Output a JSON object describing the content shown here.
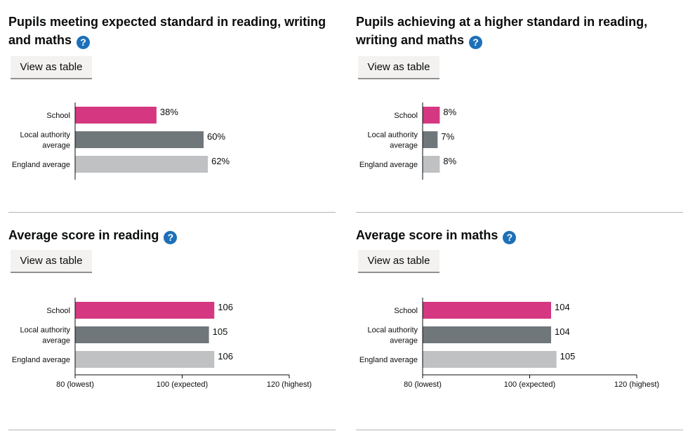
{
  "colors": {
    "school": "#d53880",
    "local": "#6f777b",
    "england": "#bfc1c3"
  },
  "button_label": "View as table",
  "help_icon": "question-mark-icon",
  "chart_data": [
    {
      "type": "bar",
      "title": "Pupils meeting expected standard in reading, writing and maths",
      "categories": [
        "School",
        "Local authority average",
        "England average"
      ],
      "category_lines": [
        [
          "School"
        ],
        [
          "Local authority",
          "average"
        ],
        [
          "England average"
        ]
      ],
      "values": [
        38,
        60,
        62
      ],
      "value_labels": [
        "38%",
        "60%",
        "62%"
      ],
      "xlim": [
        0,
        100
      ]
    },
    {
      "type": "bar",
      "title": "Pupils achieving at a higher standard in reading, writing and maths",
      "categories": [
        "School",
        "Local authority average",
        "England average"
      ],
      "category_lines": [
        [
          "School"
        ],
        [
          "Local authority",
          "average"
        ],
        [
          "England average"
        ]
      ],
      "values": [
        8,
        7,
        8
      ],
      "value_labels": [
        "8%",
        "7%",
        "8%"
      ],
      "xlim": [
        0,
        100
      ]
    },
    {
      "type": "bar",
      "title": "Average score in reading",
      "categories": [
        "School",
        "Local authority average",
        "England average"
      ],
      "category_lines": [
        [
          "School"
        ],
        [
          "Local authority",
          "average"
        ],
        [
          "England average"
        ]
      ],
      "values": [
        106,
        105,
        106
      ],
      "value_labels": [
        "106",
        "105",
        "106"
      ],
      "xlim": [
        80,
        120
      ],
      "xticks": [
        80,
        100,
        120
      ],
      "xtick_labels": [
        "80 (lowest)",
        "100 (expected)",
        "120 (highest)"
      ]
    },
    {
      "type": "bar",
      "title": "Average score in maths",
      "categories": [
        "School",
        "Local authority average",
        "England average"
      ],
      "category_lines": [
        [
          "School"
        ],
        [
          "Local authority",
          "average"
        ],
        [
          "England average"
        ]
      ],
      "values": [
        104,
        104,
        105
      ],
      "value_labels": [
        "104",
        "104",
        "105"
      ],
      "xlim": [
        80,
        120
      ],
      "xticks": [
        80,
        100,
        120
      ],
      "xtick_labels": [
        "80 (lowest)",
        "100 (expected)",
        "120 (highest)"
      ]
    }
  ]
}
